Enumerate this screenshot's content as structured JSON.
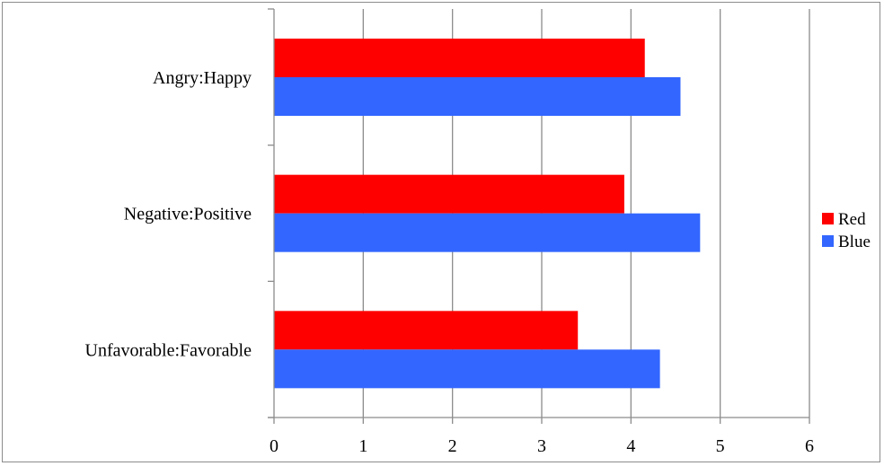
{
  "chart_data": {
    "type": "bar",
    "orientation": "horizontal",
    "categories": [
      "Angry:Happy",
      "Negative:Positive",
      "Unfavorable:Favorable"
    ],
    "series": [
      {
        "name": "Red",
        "values": [
          4.15,
          3.92,
          3.4
        ],
        "color": "#ff0000"
      },
      {
        "name": "Blue",
        "values": [
          4.55,
          4.77,
          4.32
        ],
        "color": "#3366ff"
      }
    ],
    "xlim": [
      0,
      6
    ],
    "xticks": [
      "0",
      "1",
      "2",
      "3",
      "4",
      "5",
      "6"
    ],
    "grid": "vertical",
    "legend": "right",
    "title": "",
    "xlabel": "",
    "ylabel": ""
  }
}
